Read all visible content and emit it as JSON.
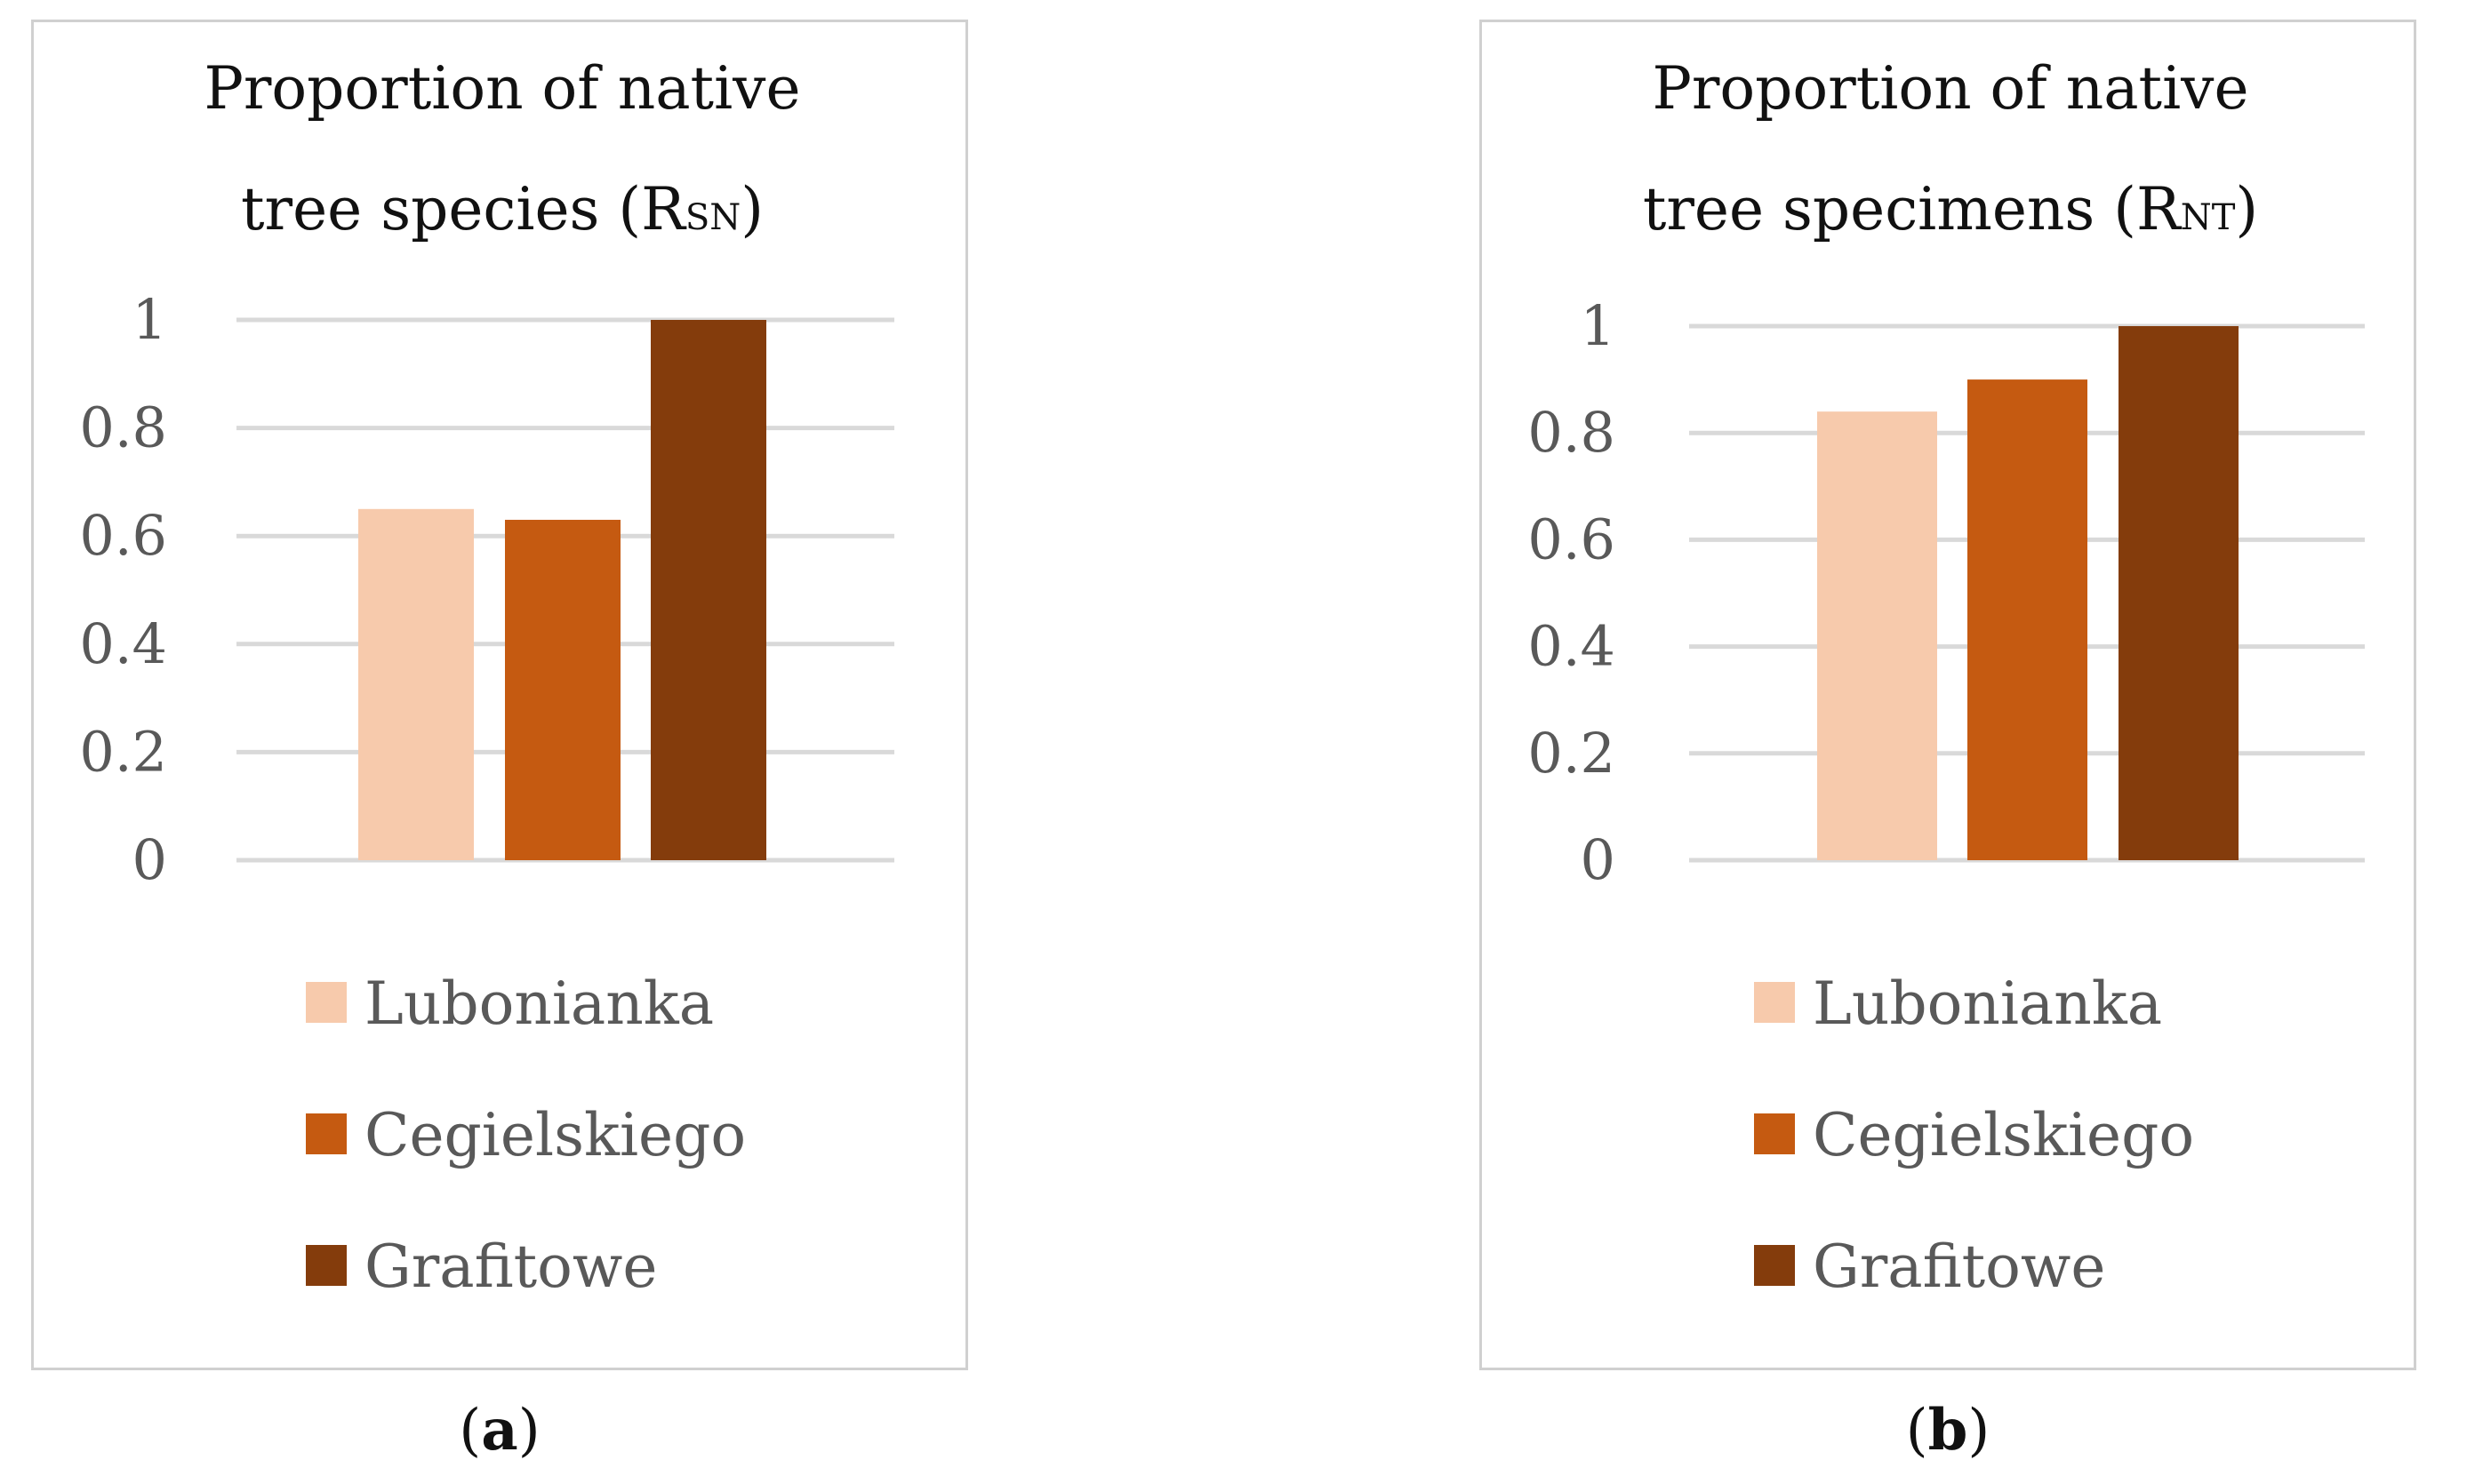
{
  "chart_data": [
    {
      "type": "bar",
      "title_line1": "Proportion of native",
      "title_line2_main": "tree species (R",
      "title_line2_sub": "SN",
      "title_line2_close": ")",
      "categories": [
        "Lubonianka",
        "Cegielskiego",
        "Grafitowe"
      ],
      "values": [
        0.65,
        0.63,
        1.0
      ],
      "colors": [
        "#f7caac",
        "#c55a11",
        "#843c0c"
      ],
      "ylim": [
        0,
        1
      ],
      "yticks": [
        "0",
        "0.2",
        "0.4",
        "0.6",
        "0.8",
        "1"
      ],
      "ytick_values": [
        0,
        0.2,
        0.4,
        0.6,
        0.8,
        1
      ],
      "xlabel": "",
      "ylabel": "",
      "grid": true,
      "legend": "bottom",
      "caption_open": "(",
      "caption_letter": "a",
      "caption_close": ")"
    },
    {
      "type": "bar",
      "title_line1": "Proportion of native",
      "title_line2_main": "tree specimens (R",
      "title_line2_sub": "NT",
      "title_line2_close": ")",
      "categories": [
        "Lubonianka",
        "Cegielskiego",
        "Grafitowe"
      ],
      "values": [
        0.84,
        0.9,
        1.0
      ],
      "colors": [
        "#f7caac",
        "#c55a11",
        "#843c0c"
      ],
      "ylim": [
        0,
        1
      ],
      "yticks": [
        "0",
        "0.2",
        "0.4",
        "0.6",
        "0.8",
        "1"
      ],
      "ytick_values": [
        0,
        0.2,
        0.4,
        0.6,
        0.8,
        1
      ],
      "xlabel": "",
      "ylabel": "",
      "grid": true,
      "legend": "bottom",
      "caption_open": "(",
      "caption_letter": "b",
      "caption_close": ")"
    }
  ]
}
